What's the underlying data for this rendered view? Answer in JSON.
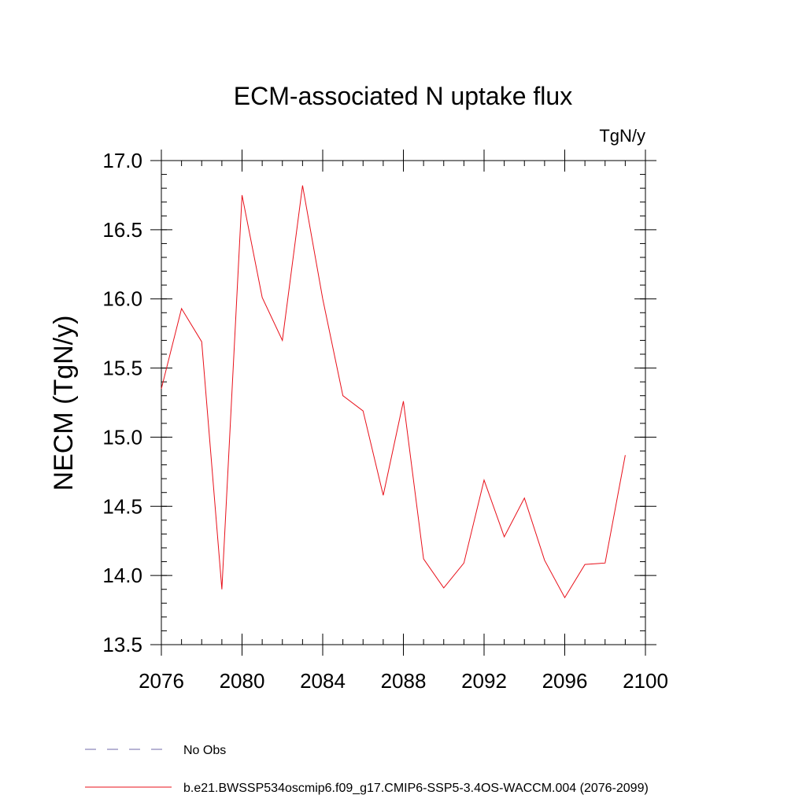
{
  "colors": {
    "series": "#e8101a",
    "obs": "#6f6aa8",
    "axis": "#000000"
  },
  "chart_data": {
    "type": "line",
    "title": "ECM-associated N uptake flux",
    "units": "TgN/y",
    "ylabel": "NECM  (TgN/y)",
    "xlabel": "",
    "xlim": [
      2076,
      2100
    ],
    "ylim": [
      13.5,
      17.0
    ],
    "x_major_ticks": [
      2076,
      2080,
      2084,
      2088,
      2092,
      2096,
      2100
    ],
    "x_tick_labels": [
      "2076",
      "2080",
      "2084",
      "2088",
      "2092",
      "2096",
      "2100"
    ],
    "x_minor_step": 1,
    "y_major_ticks": [
      13.5,
      14.0,
      14.5,
      15.0,
      15.5,
      16.0,
      16.5,
      17.0
    ],
    "y_tick_labels": [
      "13.5",
      "14.0",
      "14.5",
      "15.0",
      "15.5",
      "16.0",
      "16.5",
      "17.0"
    ],
    "y_minor_step": 0.1,
    "grid": false,
    "legend_position": "bottom",
    "series": [
      {
        "name": "b.e21.BWSSP534oscmip6.f09_g17.CMIP6-SSP5-3.4OS-WACCM.004 (2076-2099)",
        "style": "solid",
        "x": [
          2076,
          2077,
          2078,
          2079,
          2080,
          2081,
          2082,
          2083,
          2084,
          2085,
          2086,
          2087,
          2088,
          2089,
          2090,
          2091,
          2092,
          2093,
          2094,
          2095,
          2096,
          2097,
          2098,
          2099
        ],
        "y": [
          15.35,
          15.93,
          15.69,
          13.9,
          16.75,
          16.01,
          15.7,
          16.82,
          16.0,
          15.3,
          15.19,
          14.58,
          15.26,
          14.12,
          13.91,
          14.09,
          14.69,
          14.28,
          14.56,
          14.11,
          13.84,
          14.08,
          14.09,
          14.87
        ]
      }
    ],
    "legend": [
      {
        "label": "No Obs",
        "style": "dashed"
      },
      {
        "label": "b.e21.BWSSP534oscmip6.f09_g17.CMIP6-SSP5-3.4OS-WACCM.004 (2076-2099)",
        "style": "solid"
      }
    ]
  }
}
